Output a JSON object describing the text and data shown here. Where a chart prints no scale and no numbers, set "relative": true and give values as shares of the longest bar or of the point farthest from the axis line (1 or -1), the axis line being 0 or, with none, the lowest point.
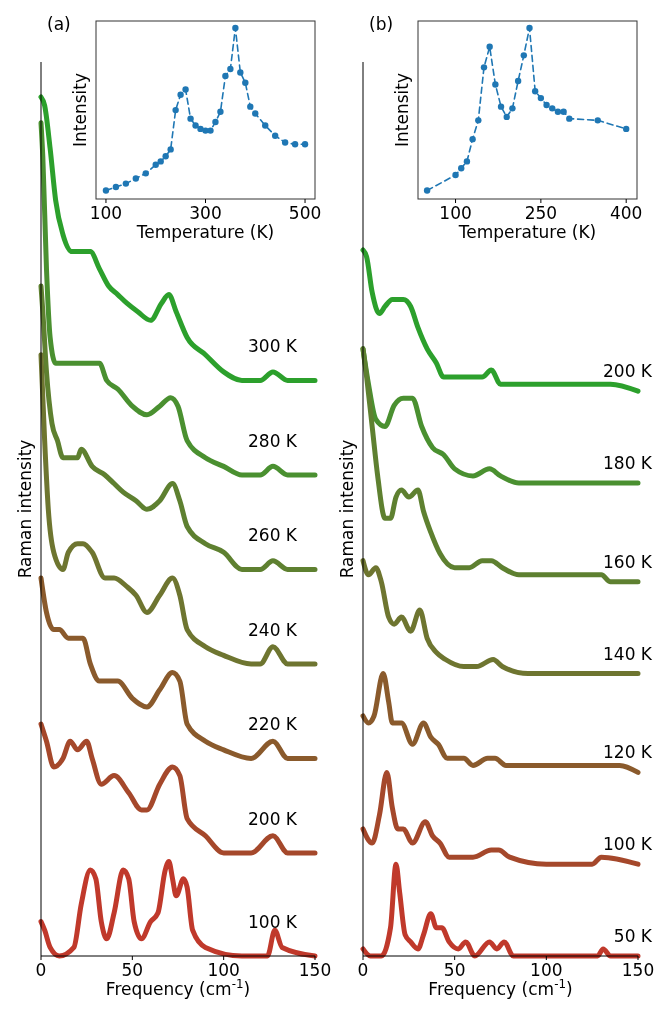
{
  "chart_data": [
    {
      "type": "line",
      "xlabel": "Temperature (K)",
      "ylabel": "Intensity",
      "relative": true,
      "xlim": [
        80,
        520
      ],
      "xticks": [
        100,
        300,
        500
      ],
      "marker": "circle",
      "line_style": "dashed",
      "series": [
        {
          "color": "#1f77b4",
          "x": [
            100,
            120,
            140,
            160,
            180,
            200,
            210,
            220,
            230,
            240,
            250,
            260,
            270,
            280,
            290,
            300,
            310,
            320,
            330,
            340,
            350,
            360,
            370,
            380,
            390,
            400,
            420,
            440,
            460,
            480,
            500
          ],
          "values": [
            0.05,
            0.07,
            0.09,
            0.12,
            0.15,
            0.2,
            0.22,
            0.25,
            0.29,
            0.52,
            0.61,
            0.64,
            0.47,
            0.43,
            0.41,
            0.4,
            0.4,
            0.45,
            0.51,
            0.72,
            0.76,
            1.0,
            0.74,
            0.68,
            0.54,
            0.5,
            0.43,
            0.37,
            0.33,
            0.32,
            0.32
          ]
        }
      ]
    },
    {
      "type": "line",
      "title": "(a)",
      "xlabel": "Frequency (cm$^{-1}$)",
      "ylabel": "Raman intensity",
      "relative": true,
      "xlim": [
        0,
        150
      ],
      "xticks": [
        0,
        50,
        100,
        150
      ],
      "series": [
        {
          "name": "300 K",
          "color": "#2ca02c",
          "x": [
            0,
            2,
            5,
            8,
            12,
            17,
            22,
            27,
            32,
            37,
            42,
            47,
            53,
            60,
            66,
            70,
            74,
            80,
            90,
            100,
            110,
            120,
            127,
            135,
            150
          ],
          "values": [
            1.0,
            0.99,
            0.94,
            0.88,
            0.84,
            0.82,
            0.82,
            0.82,
            0.8,
            0.78,
            0.77,
            0.76,
            0.75,
            0.74,
            0.76,
            0.77,
            0.75,
            0.72,
            0.7,
            0.68,
            0.67,
            0.67,
            0.68,
            0.67,
            0.67
          ]
        },
        {
          "name": "280 K",
          "color": "#4a9030",
          "x": [
            0,
            1,
            3,
            5,
            8,
            12,
            20,
            25,
            32,
            36,
            42,
            50,
            58,
            65,
            71,
            75,
            80,
            90,
            100,
            110,
            120,
            127,
            135,
            150
          ],
          "values": [
            0.97,
            0.93,
            0.8,
            0.72,
            0.69,
            0.69,
            0.69,
            0.69,
            0.69,
            0.67,
            0.66,
            0.64,
            0.63,
            0.64,
            0.65,
            0.64,
            0.6,
            0.58,
            0.57,
            0.56,
            0.56,
            0.57,
            0.56,
            0.56
          ]
        },
        {
          "name": "260 K",
          "color": "#5e8030",
          "x": [
            0,
            1,
            3,
            6,
            9,
            12,
            20,
            22,
            28,
            35,
            40,
            45,
            52,
            58,
            65,
            72,
            76,
            80,
            90,
            100,
            110,
            120,
            127,
            135,
            150
          ],
          "values": [
            0.78,
            0.75,
            0.68,
            0.62,
            0.6,
            0.58,
            0.58,
            0.59,
            0.57,
            0.56,
            0.55,
            0.54,
            0.53,
            0.52,
            0.53,
            0.55,
            0.53,
            0.5,
            0.48,
            0.47,
            0.45,
            0.45,
            0.46,
            0.45,
            0.45
          ]
        },
        {
          "name": "240 K",
          "color": "#6e7530",
          "x": [
            0,
            2,
            4,
            7,
            12,
            15,
            20,
            23,
            28,
            35,
            40,
            47,
            52,
            58,
            65,
            72,
            76,
            80,
            90,
            100,
            115,
            120,
            127,
            135,
            150
          ],
          "values": [
            0.7,
            0.6,
            0.52,
            0.47,
            0.45,
            0.47,
            0.48,
            0.48,
            0.47,
            0.44,
            0.44,
            0.43,
            0.42,
            0.4,
            0.42,
            0.44,
            0.42,
            0.38,
            0.36,
            0.35,
            0.34,
            0.34,
            0.36,
            0.34,
            0.34
          ]
        },
        {
          "name": "220 K",
          "color": "#8a5a2c",
          "x": [
            0,
            3,
            7,
            10,
            15,
            20,
            23,
            27,
            32,
            38,
            42,
            50,
            58,
            65,
            72,
            76,
            80,
            90,
            100,
            115,
            127,
            135,
            150
          ],
          "values": [
            0.44,
            0.4,
            0.38,
            0.38,
            0.37,
            0.37,
            0.37,
            0.34,
            0.32,
            0.32,
            0.32,
            0.3,
            0.29,
            0.31,
            0.33,
            0.32,
            0.27,
            0.25,
            0.24,
            0.23,
            0.25,
            0.23,
            0.23
          ]
        },
        {
          "name": "200 K",
          "color": "#a5482b",
          "x": [
            0,
            3,
            7,
            12,
            16,
            20,
            25,
            28,
            33,
            40,
            48,
            55,
            58,
            65,
            72,
            76,
            80,
            90,
            100,
            115,
            127,
            135,
            150
          ],
          "values": [
            0.27,
            0.25,
            0.22,
            0.23,
            0.25,
            0.24,
            0.25,
            0.23,
            0.2,
            0.21,
            0.19,
            0.17,
            0.17,
            0.2,
            0.22,
            0.21,
            0.16,
            0.14,
            0.12,
            0.12,
            0.14,
            0.12,
            0.12
          ]
        },
        {
          "name": "100 K",
          "color": "#c0392b",
          "x": [
            0,
            2,
            5,
            10,
            18,
            22,
            27,
            30,
            33,
            36,
            40,
            45,
            48,
            51,
            55,
            60,
            64,
            68,
            70,
            72,
            74,
            78,
            80,
            83,
            90,
            110,
            124,
            128,
            132,
            150
          ],
          "values": [
            0.04,
            0.03,
            0.01,
            0.0,
            0.01,
            0.06,
            0.1,
            0.09,
            0.04,
            0.02,
            0.05,
            0.1,
            0.09,
            0.04,
            0.02,
            0.04,
            0.05,
            0.1,
            0.11,
            0.09,
            0.07,
            0.09,
            0.08,
            0.03,
            0.01,
            0.0,
            0.0,
            0.03,
            0.01,
            0.0
          ]
        }
      ]
    },
    {
      "type": "line",
      "xlabel": "Temperature (K)",
      "ylabel": "Intensity",
      "relative": true,
      "xlim": [
        34,
        419
      ],
      "xticks": [
        100,
        250,
        400
      ],
      "marker": "circle",
      "line_style": "dashed",
      "series": [
        {
          "color": "#1f77b4",
          "x": [
            50,
            100,
            110,
            120,
            130,
            140,
            150,
            160,
            170,
            180,
            190,
            200,
            210,
            220,
            230,
            240,
            250,
            260,
            270,
            280,
            290,
            300,
            350,
            400
          ],
          "values": [
            0.05,
            0.14,
            0.18,
            0.22,
            0.35,
            0.46,
            0.77,
            0.89,
            0.67,
            0.54,
            0.48,
            0.53,
            0.69,
            0.84,
            1.0,
            0.63,
            0.59,
            0.55,
            0.53,
            0.51,
            0.51,
            0.47,
            0.46,
            0.41
          ]
        }
      ]
    },
    {
      "type": "line",
      "title": "(b)",
      "xlabel": "Frequency (cm$^{-1}$)",
      "ylabel": "Raman intensity",
      "relative": true,
      "xlim": [
        0,
        150
      ],
      "xticks": [
        0,
        50,
        100,
        150
      ],
      "series": [
        {
          "name": "200 K",
          "color": "#2ca02c",
          "x": [
            0,
            2,
            5,
            9,
            12,
            16,
            22,
            26,
            30,
            35,
            40,
            44,
            48,
            53,
            60,
            65,
            70,
            75,
            85,
            100,
            120,
            128,
            135,
            150
          ],
          "values": [
            1.0,
            0.99,
            0.94,
            0.91,
            0.92,
            0.93,
            0.93,
            0.92,
            0.89,
            0.86,
            0.84,
            0.82,
            0.82,
            0.82,
            0.82,
            0.82,
            0.83,
            0.81,
            0.81,
            0.81,
            0.81,
            0.81,
            0.81,
            0.8
          ]
        },
        {
          "name": "180 K",
          "color": "#4a9030",
          "x": [
            0,
            3,
            7,
            12,
            17,
            22,
            27,
            32,
            38,
            44,
            50,
            60,
            69,
            75,
            85,
            100,
            128,
            135,
            150
          ],
          "values": [
            0.86,
            0.81,
            0.76,
            0.75,
            0.78,
            0.79,
            0.79,
            0.75,
            0.72,
            0.71,
            0.69,
            0.68,
            0.69,
            0.68,
            0.67,
            0.67,
            0.67,
            0.67,
            0.67
          ]
        },
        {
          "name": "160 K",
          "color": "#5e8030",
          "x": [
            0,
            2,
            5,
            8,
            12,
            15,
            18,
            21,
            25,
            30,
            33,
            37,
            42,
            50,
            58,
            65,
            70,
            76,
            85,
            100,
            125,
            130,
            135,
            150
          ],
          "values": [
            0.86,
            0.82,
            0.75,
            0.68,
            0.62,
            0.62,
            0.65,
            0.66,
            0.65,
            0.66,
            0.63,
            0.6,
            0.57,
            0.55,
            0.55,
            0.56,
            0.56,
            0.55,
            0.54,
            0.54,
            0.54,
            0.54,
            0.53,
            0.53
          ]
        },
        {
          "name": "140 K",
          "color": "#6e7530",
          "x": [
            0,
            3,
            7,
            10,
            14,
            17,
            21,
            26,
            31,
            35,
            40,
            45,
            55,
            62,
            71,
            76,
            90,
            125,
            130,
            140,
            150
          ],
          "values": [
            0.56,
            0.54,
            0.55,
            0.53,
            0.48,
            0.47,
            0.48,
            0.46,
            0.49,
            0.45,
            0.43,
            0.42,
            0.41,
            0.41,
            0.42,
            0.41,
            0.4,
            0.4,
            0.4,
            0.4,
            0.4
          ]
        },
        {
          "name": "120 K",
          "color": "#8a5a2c",
          "x": [
            0,
            3,
            6,
            11,
            14,
            16,
            21,
            27,
            33,
            37,
            41,
            46,
            55,
            60,
            68,
            72,
            78,
            90,
            125,
            130,
            140,
            150
          ],
          "values": [
            0.34,
            0.33,
            0.34,
            0.4,
            0.36,
            0.33,
            0.33,
            0.3,
            0.33,
            0.31,
            0.3,
            0.28,
            0.28,
            0.27,
            0.28,
            0.28,
            0.27,
            0.27,
            0.27,
            0.27,
            0.27,
            0.26
          ]
        },
        {
          "name": "100 K",
          "color": "#a5482b",
          "x": [
            0,
            5,
            9,
            13,
            16,
            19,
            22,
            27,
            34,
            38,
            42,
            47,
            55,
            60,
            70,
            74,
            80,
            100,
            125,
            130,
            150
          ],
          "values": [
            0.18,
            0.16,
            0.2,
            0.26,
            0.21,
            0.18,
            0.18,
            0.16,
            0.19,
            0.17,
            0.16,
            0.14,
            0.14,
            0.14,
            0.15,
            0.15,
            0.14,
            0.13,
            0.13,
            0.14,
            0.13
          ]
        },
        {
          "name": "50 K",
          "color": "#c0392b",
          "x": [
            0,
            4,
            10,
            15,
            18,
            20,
            23,
            26,
            30,
            33,
            37,
            40,
            43,
            47,
            52,
            56,
            61,
            69,
            73,
            77,
            82,
            100,
            128,
            131,
            135,
            150
          ],
          "values": [
            0.01,
            0.0,
            0.0,
            0.04,
            0.13,
            0.09,
            0.03,
            0.02,
            0.01,
            0.03,
            0.06,
            0.04,
            0.04,
            0.02,
            0.01,
            0.02,
            0.0,
            0.02,
            0.01,
            0.02,
            0.0,
            0.0,
            0.0,
            0.01,
            0.0,
            0.0
          ]
        }
      ]
    }
  ]
}
